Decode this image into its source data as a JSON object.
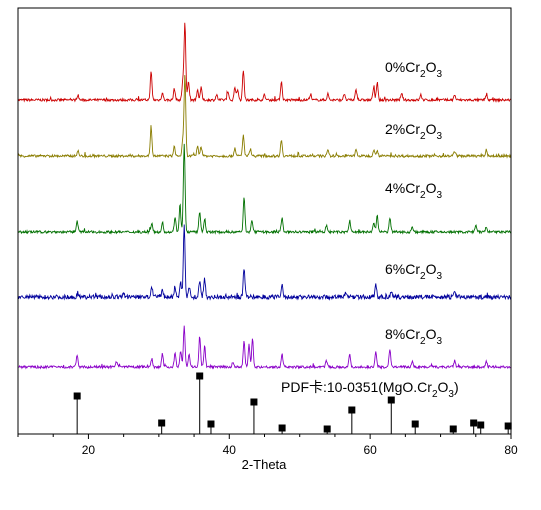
{
  "chart_data": {
    "type": "line",
    "xlabel": "2-Theta",
    "ylabel": "",
    "xlim": [
      10,
      80
    ],
    "x_ticks": [
      20,
      40,
      60,
      80
    ],
    "grid": false,
    "series": [
      {
        "name": "0%Cr2O3",
        "label_base": "0%Cr",
        "label_sub1": "2",
        "label_mid": "O",
        "label_sub2": "3",
        "color": "#cc0000",
        "peaks": [
          [
            18.5,
            5
          ],
          [
            28.9,
            27
          ],
          [
            30.5,
            7
          ],
          [
            32.2,
            11
          ],
          [
            33.4,
            18
          ],
          [
            33.7,
            75
          ],
          [
            34.2,
            17
          ],
          [
            35.5,
            9
          ],
          [
            36.0,
            12
          ],
          [
            38.2,
            5
          ],
          [
            39.8,
            7
          ],
          [
            40.8,
            13
          ],
          [
            41.2,
            10
          ],
          [
            42.0,
            29
          ],
          [
            45.0,
            5
          ],
          [
            47.4,
            18
          ],
          [
            51.5,
            5
          ],
          [
            54.0,
            6
          ],
          [
            56.3,
            6
          ],
          [
            58.0,
            10
          ],
          [
            60.5,
            12
          ],
          [
            61.0,
            16
          ],
          [
            64.5,
            6
          ],
          [
            67.2,
            5
          ],
          [
            72.0,
            5
          ],
          [
            76.5,
            5
          ]
        ]
      },
      {
        "name": "2%Cr2O3",
        "label_base": "2%Cr",
        "label_sub1": "2",
        "label_mid": "O",
        "label_sub2": "3",
        "color": "#8a7d00",
        "peaks": [
          [
            18.5,
            5
          ],
          [
            28.9,
            28
          ],
          [
            32.2,
            9
          ],
          [
            33.4,
            14
          ],
          [
            33.7,
            78
          ],
          [
            35.5,
            9
          ],
          [
            36.0,
            9
          ],
          [
            40.8,
            8
          ],
          [
            42.0,
            20
          ],
          [
            43.0,
            7
          ],
          [
            47.4,
            16
          ],
          [
            54.0,
            5
          ],
          [
            58.0,
            6
          ],
          [
            60.5,
            6
          ],
          [
            61.0,
            6
          ],
          [
            72.0,
            5
          ],
          [
            76.5,
            5
          ]
        ]
      },
      {
        "name": "4%Cr2O3",
        "label_base": "4%Cr",
        "label_sub1": "2",
        "label_mid": "O",
        "label_sub2": "3",
        "color": "#007000",
        "peaks": [
          [
            18.4,
            11
          ],
          [
            29.0,
            8
          ],
          [
            30.5,
            9
          ],
          [
            32.3,
            15
          ],
          [
            33.0,
            25
          ],
          [
            33.6,
            85
          ],
          [
            35.8,
            20
          ],
          [
            36.5,
            13
          ],
          [
            42.1,
            33
          ],
          [
            43.2,
            12
          ],
          [
            47.5,
            13
          ],
          [
            53.8,
            6
          ],
          [
            57.1,
            11
          ],
          [
            60.5,
            9
          ],
          [
            61.0,
            16
          ],
          [
            62.8,
            14
          ],
          [
            66.0,
            5
          ],
          [
            75.0,
            6
          ],
          [
            76.5,
            5
          ]
        ]
      },
      {
        "name": "6%Cr2O3",
        "label_base": "6%Cr",
        "label_sub1": "2",
        "label_mid": "O",
        "label_sub2": "3",
        "color": "#00009c",
        "peaks": [
          [
            18.5,
            4
          ],
          [
            25.0,
            4
          ],
          [
            29.0,
            10
          ],
          [
            30.5,
            7
          ],
          [
            32.3,
            10
          ],
          [
            33.1,
            14
          ],
          [
            33.6,
            70
          ],
          [
            34.3,
            10
          ],
          [
            35.8,
            16
          ],
          [
            36.5,
            18
          ],
          [
            42.1,
            28
          ],
          [
            47.5,
            12
          ],
          [
            56.5,
            4
          ],
          [
            60.8,
            12
          ],
          [
            63.0,
            4
          ],
          [
            72.0,
            4
          ]
        ]
      },
      {
        "name": "8%Cr2O3",
        "label_base": "8%Cr",
        "label_sub1": "2",
        "label_mid": "O",
        "label_sub2": "3",
        "color": "#8a00c8",
        "peaks": [
          [
            18.4,
            12
          ],
          [
            24.0,
            5
          ],
          [
            29.0,
            8
          ],
          [
            30.5,
            13
          ],
          [
            32.3,
            13
          ],
          [
            33.1,
            16
          ],
          [
            33.6,
            40
          ],
          [
            34.3,
            12
          ],
          [
            35.8,
            30
          ],
          [
            36.5,
            20
          ],
          [
            40.5,
            5
          ],
          [
            42.1,
            25
          ],
          [
            42.8,
            22
          ],
          [
            43.3,
            27
          ],
          [
            47.5,
            12
          ],
          [
            53.8,
            6
          ],
          [
            57.1,
            12
          ],
          [
            60.8,
            14
          ],
          [
            62.8,
            18
          ],
          [
            66.0,
            6
          ],
          [
            72.0,
            6
          ],
          [
            76.5,
            5
          ]
        ]
      }
    ],
    "reference": {
      "label": "PDF卡:10-0351(MgO.Cr",
      "label_sub": "2",
      "label_end": "O",
      "label_sub2": "3",
      "label_close": ")",
      "peaks": [
        [
          18.4,
          38
        ],
        [
          30.4,
          11
        ],
        [
          35.8,
          58
        ],
        [
          37.4,
          10
        ],
        [
          43.5,
          32
        ],
        [
          47.5,
          6
        ],
        [
          53.9,
          5
        ],
        [
          57.4,
          24
        ],
        [
          63.0,
          34
        ],
        [
          66.4,
          10
        ],
        [
          71.8,
          5
        ],
        [
          74.7,
          11
        ],
        [
          75.7,
          9
        ],
        [
          79.6,
          8
        ]
      ]
    }
  }
}
